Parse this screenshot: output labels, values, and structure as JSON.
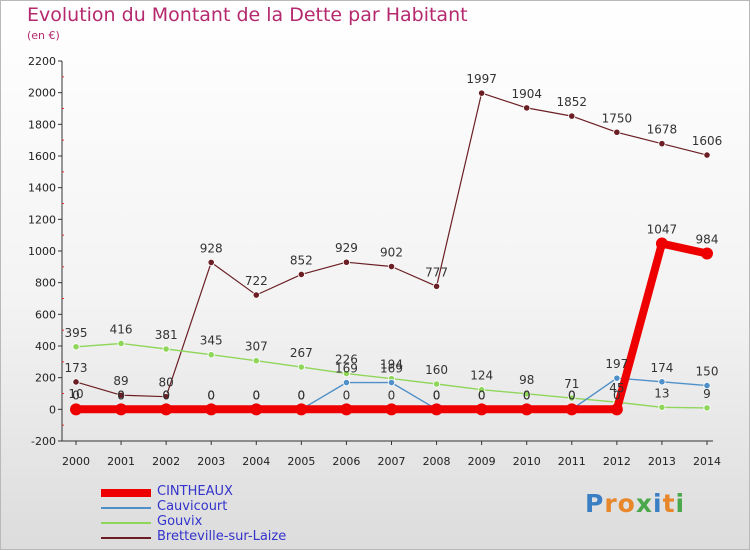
{
  "title": "Evolution du Montant de la Dette par Habitant",
  "subtitle": "(en €)",
  "logo": {
    "text": "Proxiti",
    "icon": "proxiti-logo"
  },
  "chart_data": {
    "type": "line",
    "title": "Evolution du Montant de la Dette par Habitant",
    "subtitle": "(en €)",
    "xlabel": "",
    "ylabel": "",
    "x": [
      "2000",
      "2001",
      "2002",
      "2003",
      "2004",
      "2005",
      "2006",
      "2007",
      "2008",
      "2009",
      "2010",
      "2011",
      "2012",
      "2013",
      "2014"
    ],
    "ylim": [
      -200,
      2200
    ],
    "yticks": [
      -200,
      0,
      200,
      400,
      600,
      800,
      1000,
      1200,
      1400,
      1600,
      1800,
      2000,
      2200
    ],
    "grid": false,
    "legend": "bottom-left",
    "series": [
      {
        "name": "CINTHEAUX",
        "color": "#ee0000",
        "values": [
          0,
          0,
          0,
          0,
          0,
          0,
          0,
          0,
          0,
          0,
          0,
          0,
          0,
          1047,
          984
        ],
        "labels": [
          "0",
          "0",
          "0",
          "0",
          "0",
          "0",
          "0",
          "0",
          "0",
          "0",
          "0",
          "0",
          "0",
          "1047",
          "984"
        ]
      },
      {
        "name": "Cauvicourt",
        "color": "#4f90c8",
        "values": [
          10,
          0,
          0,
          0,
          0,
          0,
          169,
          169,
          0,
          0,
          0,
          0,
          197,
          174,
          150
        ],
        "labels": [
          "10",
          "0",
          "0",
          "0",
          "0",
          "0",
          "169",
          "169",
          "0",
          "0",
          "0",
          "0",
          "197",
          "174",
          "150"
        ]
      },
      {
        "name": "Gouvix",
        "color": "#8fd65b",
        "values": [
          395,
          416,
          381,
          345,
          307,
          267,
          226,
          194,
          160,
          124,
          98,
          71,
          45,
          13,
          9
        ],
        "labels": [
          "395",
          "416",
          "381",
          "345",
          "307",
          "267",
          "226",
          "194",
          "160",
          "124",
          "98",
          "71",
          "45",
          "13",
          "9"
        ]
      },
      {
        "name": "Bretteville-sur-Laize",
        "color": "#6b1f25",
        "values": [
          173,
          89,
          80,
          928,
          722,
          852,
          929,
          902,
          777,
          1997,
          1904,
          1852,
          1750,
          1678,
          1606
        ],
        "labels": [
          "173",
          "89",
          "80",
          "928",
          "722",
          "852",
          "929",
          "902",
          "777",
          "1997",
          "1904",
          "1852",
          "1750",
          "1678",
          "1606"
        ]
      }
    ]
  }
}
